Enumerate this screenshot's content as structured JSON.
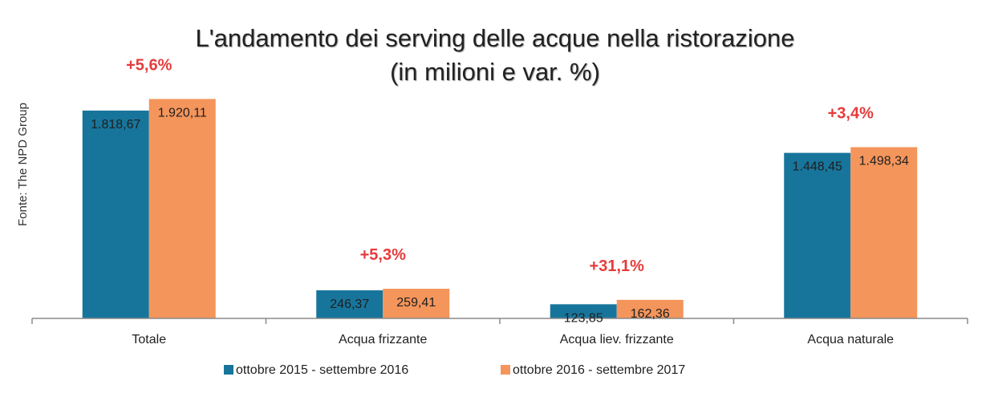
{
  "chart_data": {
    "type": "bar",
    "title": "L'andamento dei serving delle acque nella ristorazione",
    "subtitle": "(in milioni e var. %)",
    "source": "Fonte: The NPD Group",
    "categories": [
      "Totale",
      "Acqua frizzante",
      "Acqua liev. frizzante",
      "Acqua naturale"
    ],
    "series": [
      {
        "name": "ottobre 2015 - settembre 2016",
        "color": "#17759c",
        "values": [
          1818.67,
          246.37,
          123.85,
          1448.45
        ],
        "labels": [
          "1.818,67",
          "246,37",
          "123,85",
          "1.448,45"
        ]
      },
      {
        "name": "ottobre 2016 - settembre 2017",
        "color": "#f4955b",
        "values": [
          1920.11,
          259.41,
          162.36,
          1498.34
        ],
        "labels": [
          "1.920,11",
          "259,41",
          "162,36",
          "1.498,34"
        ]
      }
    ],
    "changes": [
      "+5,6%",
      "+5,3%",
      "+31,1%",
      "+3,4%"
    ],
    "change_color": "#e63b3b",
    "xlabel": "",
    "ylabel": "",
    "ylim": [
      0,
      2000
    ],
    "grid": false,
    "legend_position": "bottom"
  }
}
